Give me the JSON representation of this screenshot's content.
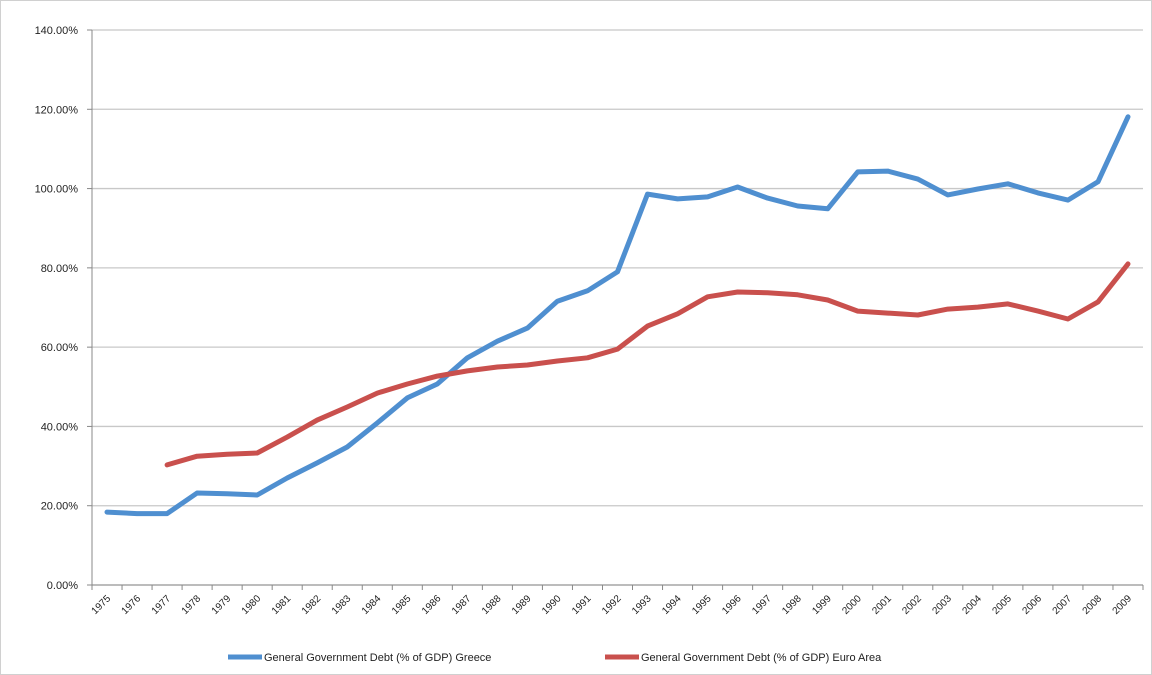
{
  "chart_data": {
    "type": "line",
    "categories": [
      "1975",
      "1976",
      "1977",
      "1978",
      "1979",
      "1980",
      "1981",
      "1982",
      "1983",
      "1984",
      "1985",
      "1986",
      "1987",
      "1988",
      "1989",
      "1990",
      "1991",
      "1992",
      "1993",
      "1994",
      "1995",
      "1996",
      "1997",
      "1998",
      "1999",
      "2000",
      "2001",
      "2002",
      "2003",
      "2004",
      "2005",
      "2006",
      "2007",
      "2008",
      "2009"
    ],
    "series": [
      {
        "name": "General Government Debt (% of GDP) Greece",
        "color": "#4f8fd0",
        "values": [
          18.4,
          18,
          18,
          23.2,
          23,
          22.7,
          27,
          30.8,
          34.8,
          40.9,
          47.2,
          50.7,
          57.3,
          61.5,
          64.8,
          71.6,
          74.2,
          79,
          98.6,
          97.4,
          97.9,
          100.4,
          97.6,
          95.6,
          94.9,
          104.2,
          104.4,
          102.4,
          98.4,
          99.9,
          101.2,
          98.9,
          97.1,
          101.7,
          118.1
        ]
      },
      {
        "name": "General Government Debt (% of GDP) Euro Area",
        "color": "#c9504d",
        "values": [
          null,
          null,
          30.3,
          32.5,
          33,
          33.3,
          37.3,
          41.6,
          44.9,
          48.4,
          50.7,
          52.7,
          54,
          55,
          55.5,
          56.5,
          57.3,
          59.5,
          65.3,
          68.4,
          72.7,
          73.9,
          73.7,
          73.2,
          71.9,
          69.1,
          68.6,
          68.1,
          69.6,
          70.1,
          70.9,
          69.1,
          67.1,
          71.4,
          81
        ]
      }
    ],
    "ylim": [
      0,
      140
    ],
    "yticks": [
      {
        "value": 0,
        "label": "0.00%"
      },
      {
        "value": 20,
        "label": "20.00%"
      },
      {
        "value": 40,
        "label": "40.00%"
      },
      {
        "value": 60,
        "label": "60.00%"
      },
      {
        "value": 80,
        "label": "80.00%"
      },
      {
        "value": 100,
        "label": "100.00%"
      },
      {
        "value": 120,
        "label": "120.00%"
      },
      {
        "value": 140,
        "label": "140.00%"
      }
    ],
    "grid": true,
    "legend": "bottom"
  }
}
